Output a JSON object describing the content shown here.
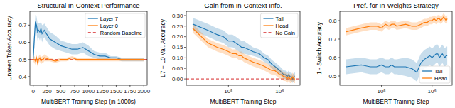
{
  "chart_data": [
    {
      "type": "line",
      "title": "Structural In-Context Performance",
      "x_label": "MultiBERT Training Step (in 1000s)",
      "y_label": "Unseen Token Accuracy",
      "x": [
        0,
        20,
        40,
        60,
        80,
        100,
        120,
        140,
        160,
        180,
        200,
        300,
        400,
        500,
        600,
        700,
        800,
        900,
        1000,
        1100,
        1200,
        1300,
        1400,
        1500,
        1600,
        1700,
        1800,
        1900,
        2000
      ],
      "xlim": [
        -60,
        2060
      ],
      "xticks": [
        0,
        250,
        500,
        750,
        1000,
        1250,
        1500,
        1750,
        2000
      ],
      "ylim": [
        0.35,
        0.78
      ],
      "yticks": [
        0.4,
        0.5,
        0.6,
        0.7
      ],
      "grid": false,
      "legend": "upper right",
      "series": [
        {
          "name": "Layer 7",
          "color": "#1f77b4",
          "line_style": "solid",
          "values": [
            0.5,
            0.62,
            0.72,
            0.7,
            0.66,
            0.67,
            0.66,
            0.68,
            0.65,
            0.66,
            0.67,
            0.62,
            0.6,
            0.58,
            0.57,
            0.56,
            0.56,
            0.57,
            0.55,
            0.53,
            0.52,
            0.52,
            0.51,
            0.51,
            0.5,
            0.5,
            0.5,
            0.5,
            0.5
          ],
          "error": [
            0.01,
            0.05,
            0.04,
            0.05,
            0.05,
            0.04,
            0.05,
            0.04,
            0.05,
            0.04,
            0.04,
            0.04,
            0.04,
            0.03,
            0.03,
            0.03,
            0.03,
            0.03,
            0.03,
            0.02,
            0.02,
            0.02,
            0.01,
            0.01,
            0.01,
            0.01,
            0.01,
            0.01,
            0.01
          ]
        },
        {
          "name": "Layer 0",
          "color": "#ff7f0e",
          "line_style": "solid",
          "values": [
            0.5,
            0.5,
            0.49,
            0.51,
            0.48,
            0.5,
            0.51,
            0.49,
            0.5,
            0.5,
            0.51,
            0.5,
            0.49,
            0.5,
            0.5,
            0.51,
            0.5,
            0.5,
            0.5,
            0.5,
            0.5,
            0.5,
            0.5,
            0.5,
            0.5,
            0.5,
            0.5,
            0.5,
            0.5
          ],
          "error": [
            0.01,
            0.02,
            0.02,
            0.02,
            0.02,
            0.02,
            0.02,
            0.02,
            0.02,
            0.02,
            0.02,
            0.01,
            0.01,
            0.01,
            0.01,
            0.01,
            0.01,
            0.01,
            0.01,
            0.01,
            0.01,
            0.01,
            0.01,
            0.01,
            0.01,
            0.01,
            0.01,
            0.01,
            0.01
          ]
        }
      ],
      "reference_line": {
        "name": "Random Baseline",
        "value": 0.5,
        "color": "#d62728",
        "line_style": "dashed"
      }
    },
    {
      "type": "line",
      "title": "Gain from In-Context Info.",
      "x_label": "MultiBERT Training Step",
      "y_label": "L7 − L0 Val. Accuracy",
      "log": "x",
      "x": [
        20000,
        40000,
        60000,
        80000,
        100000,
        120000,
        140000,
        160000,
        180000,
        200000,
        300000,
        400000,
        500000,
        600000,
        700000,
        800000,
        900000,
        1000000,
        1100000,
        1200000,
        1300000,
        1400000,
        1500000,
        1600000,
        1700000,
        1800000,
        1900000,
        2000000
      ],
      "xlim": [
        15000,
        2500000
      ],
      "xticks": [
        {
          "value": 100000,
          "label": "10⁵"
        },
        {
          "value": 1000000,
          "label": "10⁶"
        }
      ],
      "ylim": [
        -0.03,
        0.32
      ],
      "yticks": [
        {
          "value": 0,
          "label": "0.00"
        },
        0.05,
        {
          "value": 0.1,
          "label": "0.10"
        },
        0.15,
        {
          "value": 0.2,
          "label": "0.20"
        },
        0.25,
        {
          "value": 0.3,
          "label": "0.30"
        }
      ],
      "grid": false,
      "legend": "upper right",
      "series": [
        {
          "name": "Tail",
          "color": "#1f77b4",
          "line_style": "solid",
          "values": [
            0.26,
            0.23,
            0.21,
            0.2,
            0.18,
            0.18,
            0.17,
            0.16,
            0.15,
            0.15,
            0.13,
            0.12,
            0.1,
            0.09,
            0.07,
            0.06,
            0.05,
            0.04,
            0.03,
            0.02,
            0.02,
            0.01,
            0.02,
            0.01,
            0.01,
            0.0,
            0.01,
            0.01
          ],
          "error": [
            0.03,
            0.03,
            0.03,
            0.03,
            0.03,
            0.03,
            0.03,
            0.03,
            0.03,
            0.03,
            0.02,
            0.02,
            0.02,
            0.02,
            0.02,
            0.02,
            0.02,
            0.02,
            0.02,
            0.02,
            0.02,
            0.02,
            0.02,
            0.02,
            0.02,
            0.02,
            0.02,
            0.02
          ]
        },
        {
          "name": "Head",
          "color": "#ff7f0e",
          "line_style": "solid",
          "values": [
            0.24,
            0.17,
            0.15,
            0.14,
            0.13,
            0.12,
            0.12,
            0.11,
            0.11,
            0.1,
            0.08,
            0.07,
            0.06,
            0.05,
            0.04,
            0.04,
            0.03,
            0.02,
            0.02,
            0.01,
            0.01,
            0.0,
            0.01,
            0.0,
            0.0,
            0.01,
            0.0,
            0.0
          ],
          "error": [
            0.02,
            0.02,
            0.02,
            0.02,
            0.02,
            0.02,
            0.02,
            0.02,
            0.02,
            0.02,
            0.02,
            0.02,
            0.02,
            0.02,
            0.02,
            0.02,
            0.02,
            0.02,
            0.02,
            0.02,
            0.02,
            0.02,
            0.02,
            0.02,
            0.02,
            0.02,
            0.02,
            0.02
          ]
        }
      ],
      "reference_line": {
        "name": "No Gain",
        "value": 0,
        "color": "#d62728",
        "line_style": "dashed"
      }
    },
    {
      "type": "line",
      "title": "Pref. for In-Weights Strategy",
      "x_label": "MultiBERT Training Step",
      "y_label": "1 - Switch Accuracy",
      "log": "x",
      "x": [
        20000,
        40000,
        60000,
        80000,
        100000,
        120000,
        140000,
        160000,
        180000,
        200000,
        300000,
        400000,
        500000,
        600000,
        700000,
        800000,
        900000,
        1000000,
        1100000,
        1200000,
        1300000,
        1400000,
        1500000,
        1600000,
        1700000,
        1800000,
        1900000,
        2000000
      ],
      "xlim": [
        15000,
        2500000
      ],
      "xticks": [
        {
          "value": 100000,
          "label": "10⁵"
        },
        {
          "value": 1000000,
          "label": "10⁶"
        }
      ],
      "ylim": [
        0.45,
        0.85
      ],
      "yticks": [
        0.5,
        0.6,
        0.7,
        0.8
      ],
      "grid": false,
      "legend": "lower right",
      "series": [
        {
          "name": "Tail",
          "color": "#1f77b4",
          "line_style": "solid",
          "values": [
            0.55,
            0.56,
            0.55,
            0.55,
            0.56,
            0.55,
            0.55,
            0.56,
            0.55,
            0.55,
            0.55,
            0.54,
            0.52,
            0.57,
            0.59,
            0.6,
            0.61,
            0.6,
            0.61,
            0.62,
            0.62,
            0.6,
            0.61,
            0.62,
            0.61,
            0.6,
            0.61,
            0.61
          ],
          "error": [
            0.04,
            0.04,
            0.04,
            0.04,
            0.04,
            0.04,
            0.04,
            0.04,
            0.04,
            0.04,
            0.05,
            0.05,
            0.05,
            0.05,
            0.05,
            0.05,
            0.05,
            0.05,
            0.05,
            0.05,
            0.05,
            0.05,
            0.05,
            0.05,
            0.05,
            0.05,
            0.05,
            0.05
          ]
        },
        {
          "name": "Head",
          "color": "#ff7f0e",
          "line_style": "solid",
          "values": [
            0.74,
            0.76,
            0.77,
            0.77,
            0.76,
            0.78,
            0.77,
            0.78,
            0.78,
            0.77,
            0.78,
            0.77,
            0.77,
            0.78,
            0.79,
            0.79,
            0.8,
            0.8,
            0.81,
            0.8,
            0.81,
            0.81,
            0.8,
            0.81,
            0.82,
            0.81,
            0.8,
            0.81
          ],
          "error": [
            0.02,
            0.02,
            0.02,
            0.02,
            0.02,
            0.02,
            0.02,
            0.02,
            0.02,
            0.02,
            0.02,
            0.02,
            0.02,
            0.02,
            0.02,
            0.02,
            0.02,
            0.02,
            0.02,
            0.02,
            0.02,
            0.02,
            0.02,
            0.02,
            0.02,
            0.02,
            0.02,
            0.02
          ]
        }
      ]
    }
  ]
}
